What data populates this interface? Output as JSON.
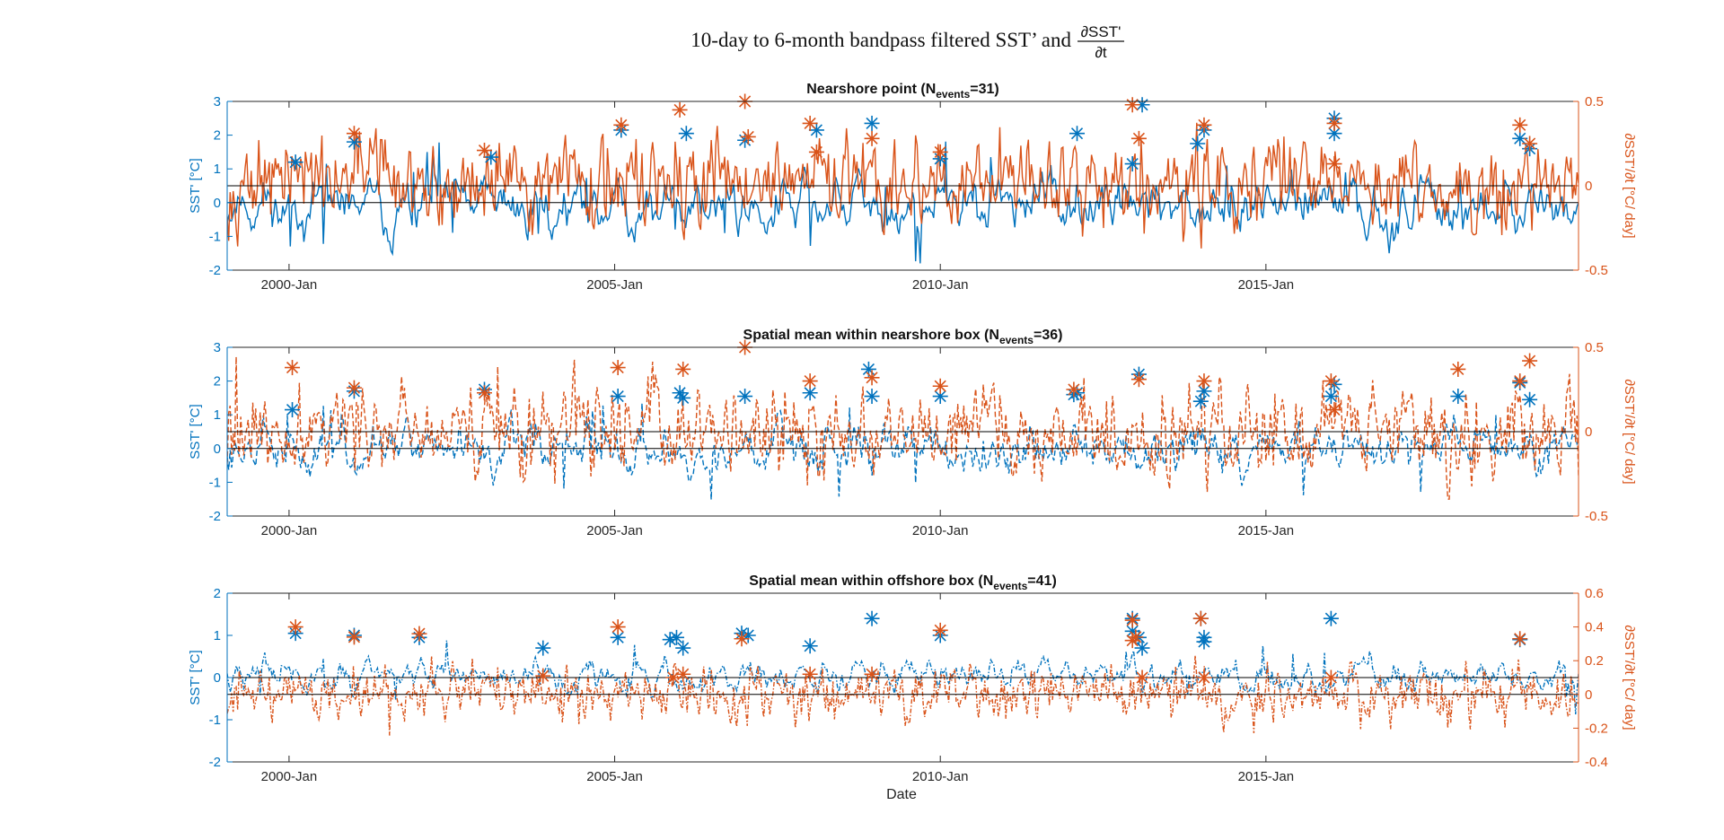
{
  "figure": {
    "title_text": "10-day to 6-month bandpass filtered SST’ and",
    "title_frac_num": "∂SST'",
    "title_frac_den": "∂t",
    "xlabel": "Date",
    "colors": {
      "sst": "#0072BD",
      "dsst": "#D95319",
      "zero": "#000000"
    }
  },
  "chart_data": [
    {
      "type": "line",
      "title_main": "Nearshore point (N",
      "title_sub": "events",
      "title_tail": "=31)",
      "line_style": "solid",
      "x_ticks": [
        {
          "label": "2000-Jan",
          "value": 2000.0
        },
        {
          "label": "2005-Jan",
          "value": 2005.0
        },
        {
          "label": "2010-Jan",
          "value": 2010.0
        },
        {
          "label": "2015-Jan",
          "value": 2015.0
        }
      ],
      "xlim": [
        1999.05,
        2019.8
      ],
      "left_axis": {
        "label": "SST' [°C]",
        "ylim": [
          -2,
          3
        ],
        "ticks": [
          "3",
          "2",
          "1",
          "0",
          "-1",
          "-2"
        ]
      },
      "right_axis": {
        "label": "∂SST'/∂t [°C/ day]",
        "ylim": [
          -0.5,
          0.5
        ],
        "ticks": [
          "0.5",
          "0",
          "-0.5"
        ]
      },
      "series": [
        {
          "amp_left": 0.55,
          "base_left": -0.05,
          "min_left": -1.8,
          "max_left": 2.4
        },
        {
          "amp_right": 0.1,
          "base_right": 0.02,
          "min_right": -0.52,
          "max_right": 0.52
        }
      ],
      "sst_events": [
        [
          2000.1,
          1.2
        ],
        [
          2001.0,
          1.8
        ],
        [
          2003.1,
          1.35
        ],
        [
          2005.1,
          2.15
        ],
        [
          2006.1,
          2.05
        ],
        [
          2007.0,
          1.85
        ],
        [
          2008.1,
          2.15
        ],
        [
          2008.95,
          2.35
        ],
        [
          2010.0,
          1.3
        ],
        [
          2012.1,
          2.05
        ],
        [
          2012.95,
          1.15
        ],
        [
          2013.1,
          2.9
        ],
        [
          2013.95,
          1.75
        ],
        [
          2014.05,
          2.15
        ],
        [
          2016.05,
          2.05
        ],
        [
          2016.05,
          2.5
        ],
        [
          2018.9,
          1.9
        ],
        [
          2019.05,
          1.6
        ]
      ],
      "dsst_events": [
        [
          2001.0,
          0.31
        ],
        [
          2003.0,
          0.21
        ],
        [
          2005.1,
          0.36
        ],
        [
          2006.0,
          0.45
        ],
        [
          2007.0,
          0.5
        ],
        [
          2007.05,
          0.29
        ],
        [
          2008.0,
          0.37
        ],
        [
          2008.1,
          0.2
        ],
        [
          2008.95,
          0.28
        ],
        [
          2010.0,
          0.2
        ],
        [
          2012.95,
          0.48
        ],
        [
          2013.05,
          0.28
        ],
        [
          2014.05,
          0.36
        ],
        [
          2016.05,
          0.37
        ],
        [
          2016.05,
          0.13
        ],
        [
          2018.9,
          0.36
        ],
        [
          2019.05,
          0.25
        ]
      ]
    },
    {
      "type": "line",
      "title_main": "Spatial mean within nearshore box (N",
      "title_sub": "events",
      "title_tail": "=36)",
      "line_style": "dashed",
      "x_ticks": [
        {
          "label": "2000-Jan",
          "value": 2000.0
        },
        {
          "label": "2005-Jan",
          "value": 2005.0
        },
        {
          "label": "2010-Jan",
          "value": 2010.0
        },
        {
          "label": "2015-Jan",
          "value": 2015.0
        }
      ],
      "xlim": [
        1999.05,
        2019.8
      ],
      "left_axis": {
        "label": "SST' [°C]",
        "ylim": [
          -2,
          3
        ],
        "ticks": [
          "3",
          "2",
          "1",
          "0",
          "-1",
          "-2"
        ]
      },
      "right_axis": {
        "label": "∂SST'/∂t [°C/ day]",
        "ylim": [
          -0.5,
          0.5
        ],
        "ticks": [
          "0.5",
          "0",
          "-0.5"
        ]
      },
      "series": [
        {
          "amp_left": 0.5,
          "base_left": 0.0,
          "min_left": -1.8,
          "max_left": 2.1
        },
        {
          "amp_right": 0.1,
          "base_right": 0.0,
          "min_right": -0.4,
          "max_right": 0.45
        }
      ],
      "sst_events": [
        [
          2000.05,
          1.15
        ],
        [
          2001.0,
          1.7
        ],
        [
          2003.0,
          1.75
        ],
        [
          2005.05,
          1.55
        ],
        [
          2006.0,
          1.65
        ],
        [
          2006.05,
          1.5
        ],
        [
          2007.0,
          1.55
        ],
        [
          2008.0,
          1.65
        ],
        [
          2008.9,
          2.35
        ],
        [
          2008.95,
          1.55
        ],
        [
          2010.0,
          1.55
        ],
        [
          2012.05,
          1.6
        ],
        [
          2012.1,
          1.65
        ],
        [
          2013.05,
          2.2
        ],
        [
          2014.0,
          1.4
        ],
        [
          2014.05,
          1.7
        ],
        [
          2016.0,
          1.55
        ],
        [
          2016.05,
          1.9
        ],
        [
          2017.95,
          1.55
        ],
        [
          2018.9,
          1.95
        ],
        [
          2019.05,
          1.45
        ]
      ],
      "dsst_events": [
        [
          2000.05,
          0.38
        ],
        [
          2001.0,
          0.26
        ],
        [
          2003.0,
          0.23
        ],
        [
          2005.05,
          0.38
        ],
        [
          2006.05,
          0.37
        ],
        [
          2007.0,
          0.5
        ],
        [
          2008.0,
          0.3
        ],
        [
          2008.95,
          0.32
        ],
        [
          2010.0,
          0.27
        ],
        [
          2012.05,
          0.25
        ],
        [
          2013.05,
          0.31
        ],
        [
          2014.05,
          0.3
        ],
        [
          2016.0,
          0.3
        ],
        [
          2016.05,
          0.13
        ],
        [
          2017.95,
          0.37
        ],
        [
          2018.9,
          0.3
        ],
        [
          2019.05,
          0.42
        ]
      ]
    },
    {
      "type": "line",
      "title_main": "Spatial mean within offshore box (N",
      "title_sub": "events",
      "title_tail": "=41)",
      "line_style": "dashdot",
      "x_ticks": [
        {
          "label": "2000-Jan",
          "value": 2000.0
        },
        {
          "label": "2005-Jan",
          "value": 2005.0
        },
        {
          "label": "2010-Jan",
          "value": 2010.0
        },
        {
          "label": "2015-Jan",
          "value": 2015.0
        }
      ],
      "xlim": [
        1999.05,
        2019.8
      ],
      "left_axis": {
        "label": "SST' [°C]",
        "ylim": [
          -2,
          2
        ],
        "ticks": [
          "2",
          "1",
          "0",
          "-1",
          "-2"
        ]
      },
      "right_axis": {
        "label": "∂SST'/∂t [°C/ day]",
        "ylim": [
          -0.4,
          0.6
        ],
        "ticks": [
          "0.6",
          "0.4",
          "0.2",
          "0",
          "-0.2",
          "-0.4"
        ]
      },
      "series": [
        {
          "amp_left": 0.25,
          "base_left": 0.05,
          "min_left": -1.1,
          "max_left": 1.4
        },
        {
          "amp_right": 0.06,
          "base_right": 0.0,
          "min_right": -0.36,
          "max_right": 0.45
        }
      ],
      "sst_events": [
        [
          2000.1,
          1.05
        ],
        [
          2001.0,
          1.0
        ],
        [
          2002.0,
          0.95
        ],
        [
          2003.9,
          0.7
        ],
        [
          2005.05,
          0.95
        ],
        [
          2005.85,
          0.9
        ],
        [
          2005.95,
          0.95
        ],
        [
          2006.05,
          0.7
        ],
        [
          2006.95,
          1.05
        ],
        [
          2007.05,
          1.0
        ],
        [
          2008.0,
          0.75
        ],
        [
          2008.95,
          1.4
        ],
        [
          2010.0,
          1.0
        ],
        [
          2012.95,
          1.4
        ],
        [
          2012.95,
          1.1
        ],
        [
          2013.05,
          0.95
        ],
        [
          2013.1,
          0.7
        ],
        [
          2014.0,
          1.4
        ],
        [
          2014.05,
          0.95
        ],
        [
          2014.05,
          0.85
        ],
        [
          2016.0,
          1.4
        ],
        [
          2018.9,
          0.9
        ]
      ],
      "dsst_events": [
        [
          2000.1,
          0.4
        ],
        [
          2001.0,
          0.34
        ],
        [
          2002.0,
          0.36
        ],
        [
          2003.9,
          0.11
        ],
        [
          2005.05,
          0.4
        ],
        [
          2005.9,
          0.1
        ],
        [
          2006.05,
          0.12
        ],
        [
          2006.95,
          0.33
        ],
        [
          2008.0,
          0.12
        ],
        [
          2008.95,
          0.12
        ],
        [
          2010.0,
          0.38
        ],
        [
          2012.95,
          0.44
        ],
        [
          2012.95,
          0.32
        ],
        [
          2013.0,
          0.34
        ],
        [
          2013.1,
          0.1
        ],
        [
          2014.0,
          0.45
        ],
        [
          2014.05,
          0.1
        ],
        [
          2016.0,
          0.1
        ],
        [
          2018.9,
          0.33
        ]
      ]
    }
  ]
}
